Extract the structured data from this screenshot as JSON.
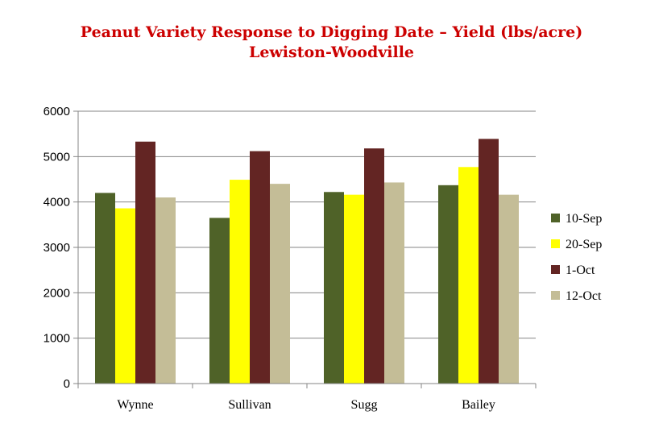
{
  "chart_data": {
    "type": "bar",
    "title": "Peanut Variety Response to Digging Date – Yield (lbs/acre)",
    "subtitle": "Lewiston-Woodville",
    "categories": [
      "Wynne",
      "Sullivan",
      "Sugg",
      "Bailey"
    ],
    "series": [
      {
        "name": "10-Sep",
        "color": "#4f6228",
        "values": [
          4200,
          3650,
          4220,
          4370
        ]
      },
      {
        "name": "20-Sep",
        "color": "#ffff00",
        "values": [
          3860,
          4490,
          4160,
          4770
        ]
      },
      {
        "name": "1-Oct",
        "color": "#632523",
        "values": [
          5330,
          5120,
          5180,
          5390
        ]
      },
      {
        "name": "12-Oct",
        "color": "#c4bd97",
        "values": [
          4100,
          4400,
          4430,
          4160
        ]
      }
    ],
    "ylim": [
      0,
      6000
    ],
    "yticks": [
      0,
      1000,
      2000,
      3000,
      4000,
      5000,
      6000
    ],
    "grid": true,
    "legend": "right"
  }
}
